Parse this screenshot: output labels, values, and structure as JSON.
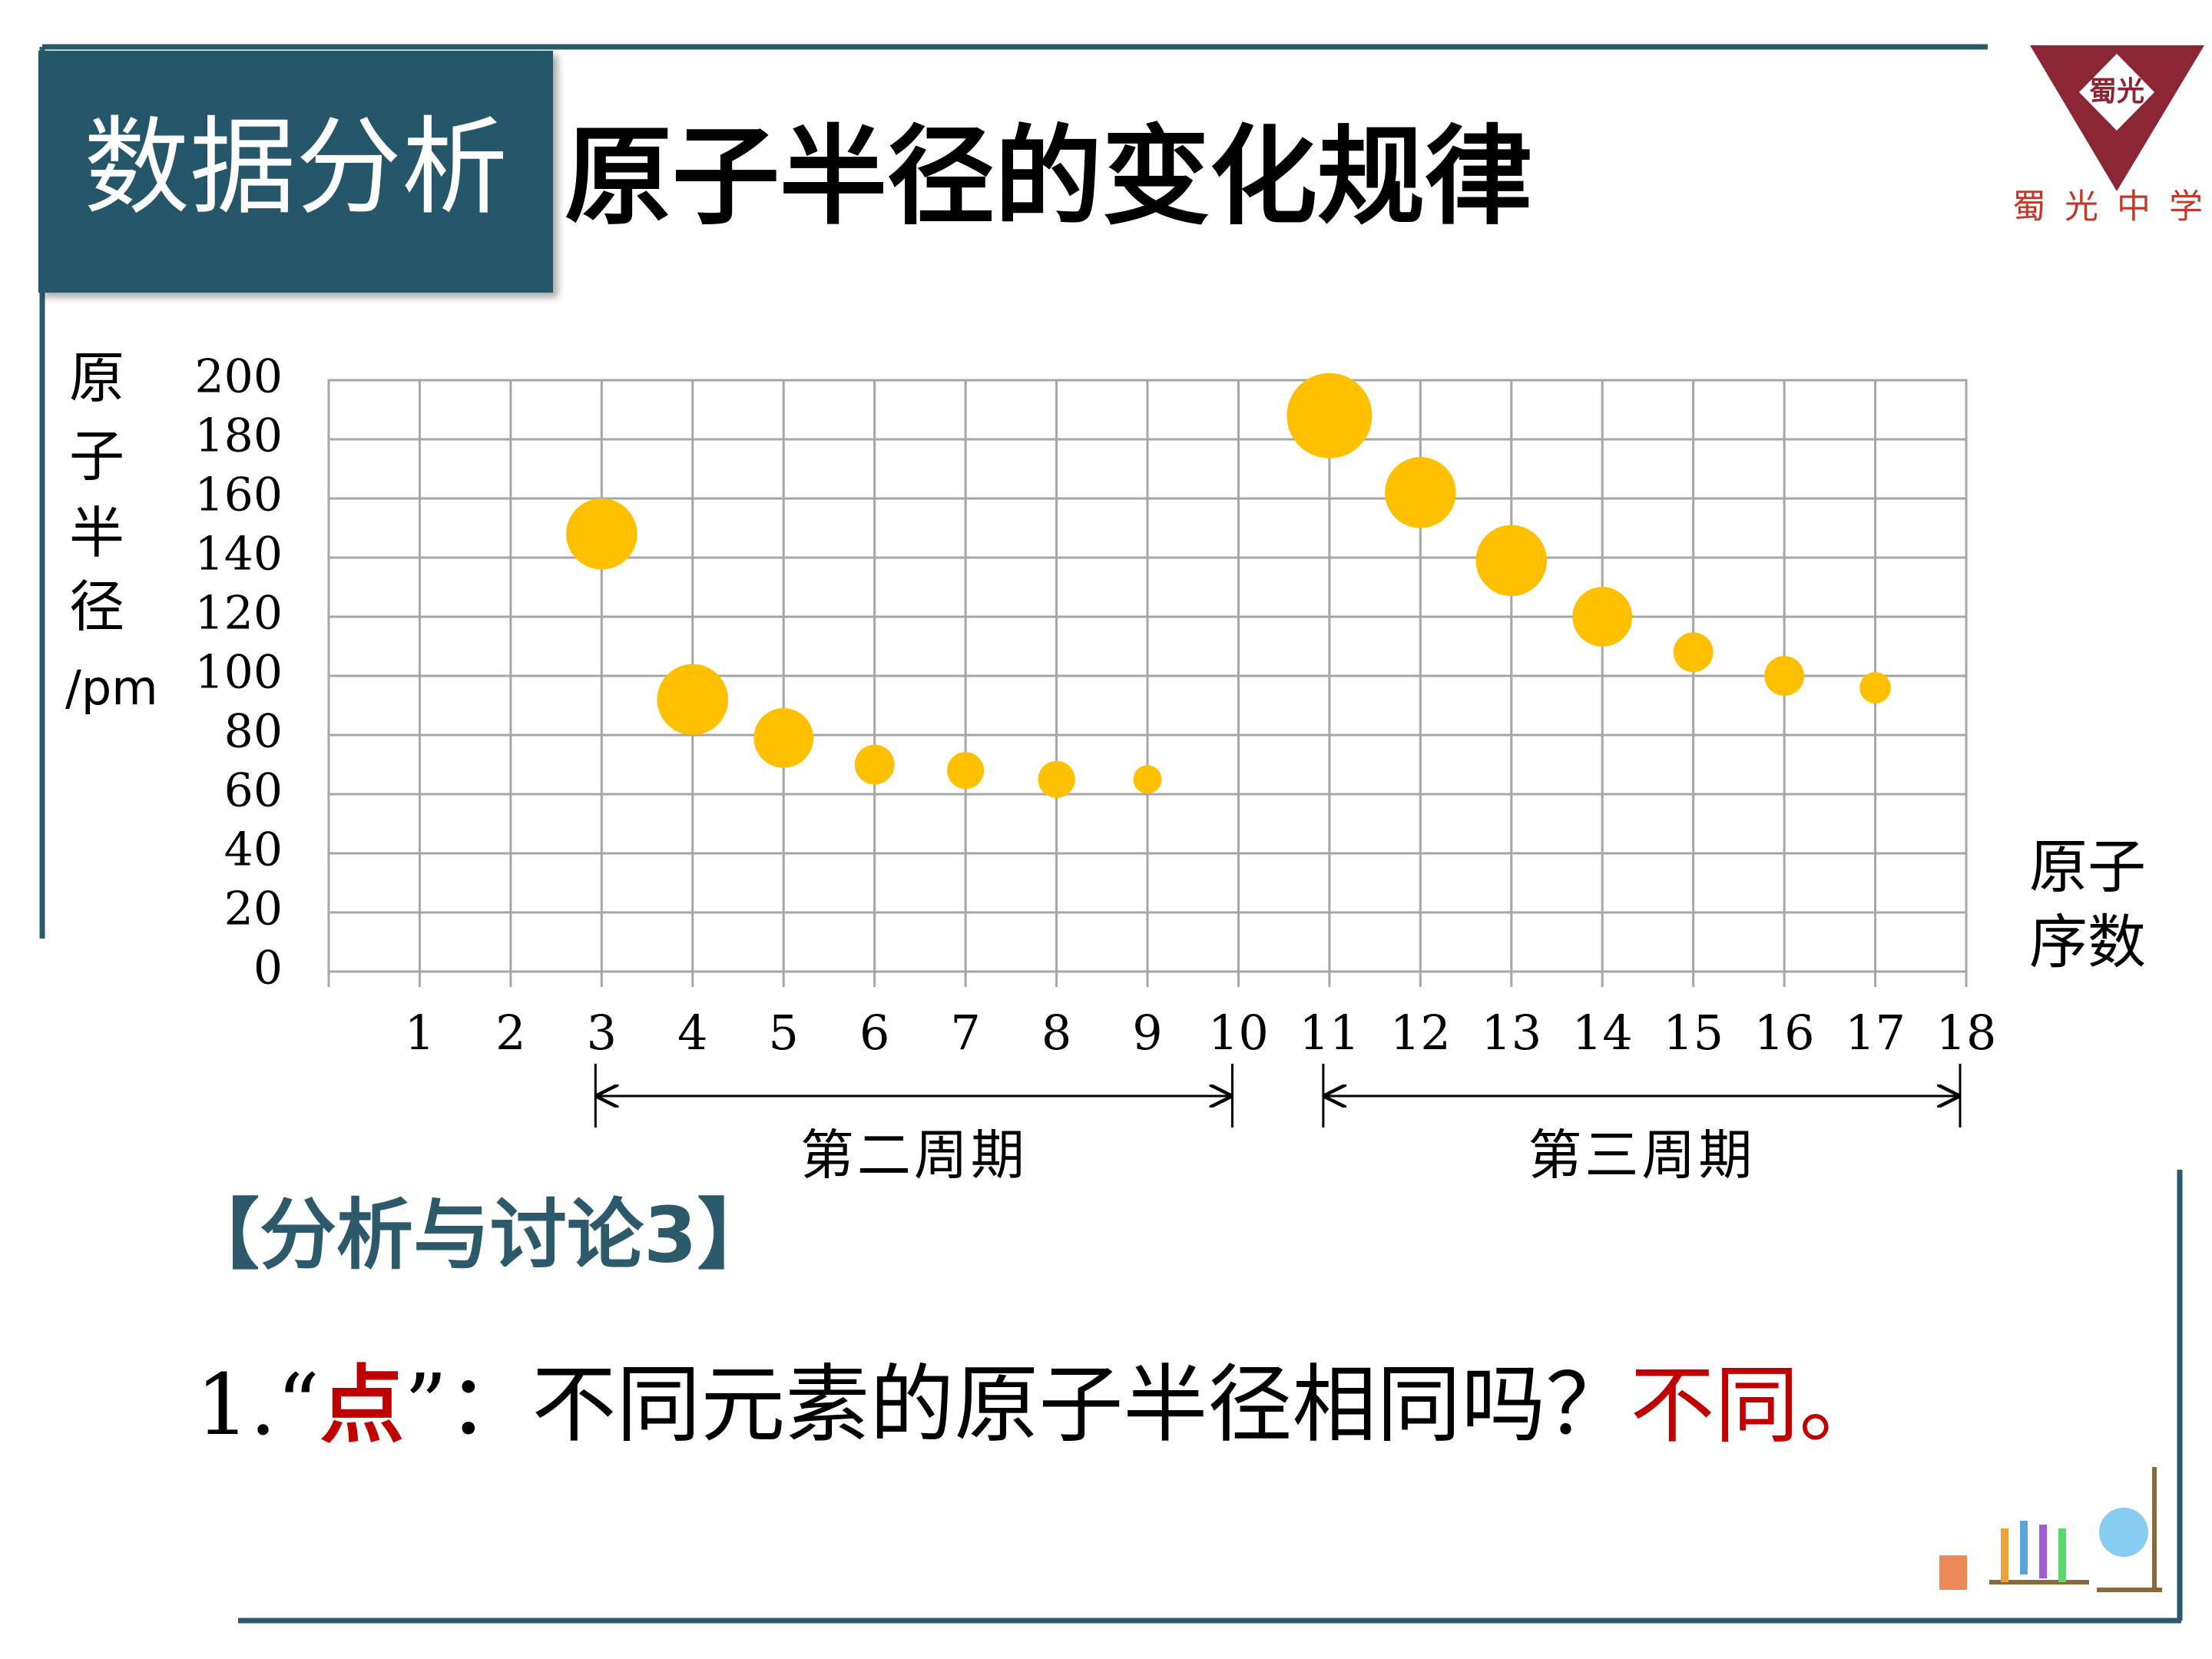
{
  "slide": {
    "badge": "数据分析",
    "title": "原子半径的变化规律",
    "school": "蜀光中学",
    "logo_mark": "蜀光",
    "discussion_heading": "【分析与讨论3】",
    "question": {
      "prefix": "1.“",
      "keyword": "点",
      "body": "”：不同元素的原子半径相同吗？",
      "answer": "不同。"
    },
    "periods": [
      "第二周期",
      "第三周期"
    ]
  },
  "chart_data": {
    "type": "scatter",
    "y_label_chars": [
      "原",
      "子",
      "半",
      "径"
    ],
    "y_label_unit": "/pm",
    "x_label_lines": [
      "原子",
      "序数"
    ],
    "x": [
      3,
      4,
      5,
      6,
      7,
      8,
      9,
      11,
      12,
      13,
      14,
      15,
      16,
      17
    ],
    "values": [
      148,
      92,
      79,
      70,
      68,
      65,
      65,
      188,
      162,
      139,
      120,
      108,
      100,
      96
    ],
    "sizes": [
      25,
      25,
      21,
      14,
      13,
      13,
      10,
      30,
      25,
      25,
      21,
      14,
      14,
      11
    ],
    "color": "#ffc000",
    "xlim": [
      0,
      18
    ],
    "xticks": [
      1,
      2,
      3,
      4,
      5,
      6,
      7,
      8,
      9,
      10,
      11,
      12,
      13,
      14,
      15,
      16,
      17,
      18
    ],
    "ylim": [
      0,
      200
    ],
    "yticks": [
      0,
      20,
      40,
      60,
      80,
      100,
      120,
      140,
      160,
      180,
      200
    ],
    "grid": true
  }
}
